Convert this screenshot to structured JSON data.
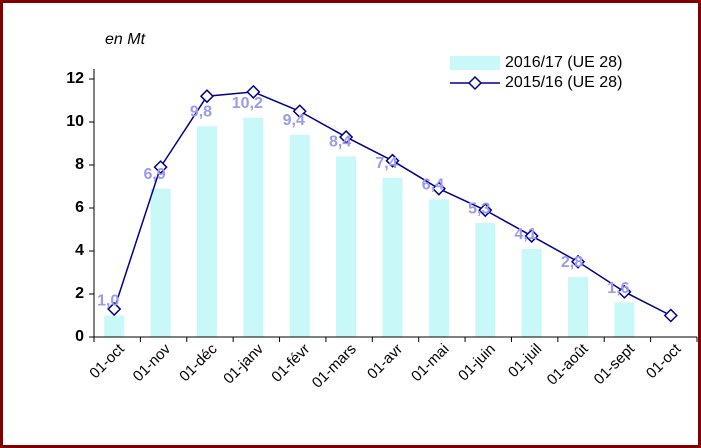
{
  "chart_data": {
    "type": "bar-line",
    "annotation": "en Mt",
    "categories": [
      "01-oct",
      "01-nov",
      "01-déc",
      "01-janv",
      "01-févr",
      "01-mars",
      "01-avr",
      "01-mai",
      "01-juin",
      "01-juil",
      "01-août",
      "01-sept",
      "01-oct"
    ],
    "series": [
      {
        "name": "2016/17 (UE 28)",
        "kind": "bar",
        "color": "#c8f8f8",
        "values": [
          1.0,
          6.9,
          9.8,
          10.2,
          9.4,
          8.4,
          7.4,
          6.4,
          5.3,
          4.1,
          2.8,
          1.6,
          null
        ],
        "value_labels": [
          "1,0",
          "6,9",
          "9,8",
          "10,2",
          "9,4",
          "8,4",
          "7,4",
          "6,4",
          "5,3",
          "4,1",
          "2,8",
          "1,6",
          null
        ],
        "label_color": "#9a9aee"
      },
      {
        "name": "2015/16 (UE 28)",
        "kind": "line",
        "color": "#00008c",
        "values": [
          1.3,
          7.9,
          11.2,
          11.4,
          10.5,
          9.3,
          8.2,
          6.9,
          5.9,
          4.7,
          3.5,
          2.1,
          1.0
        ]
      }
    ],
    "ylim": [
      0,
      12
    ],
    "yticks": [
      0,
      2,
      4,
      6,
      8,
      10,
      12
    ],
    "grid": false,
    "legend": "top-right"
  }
}
